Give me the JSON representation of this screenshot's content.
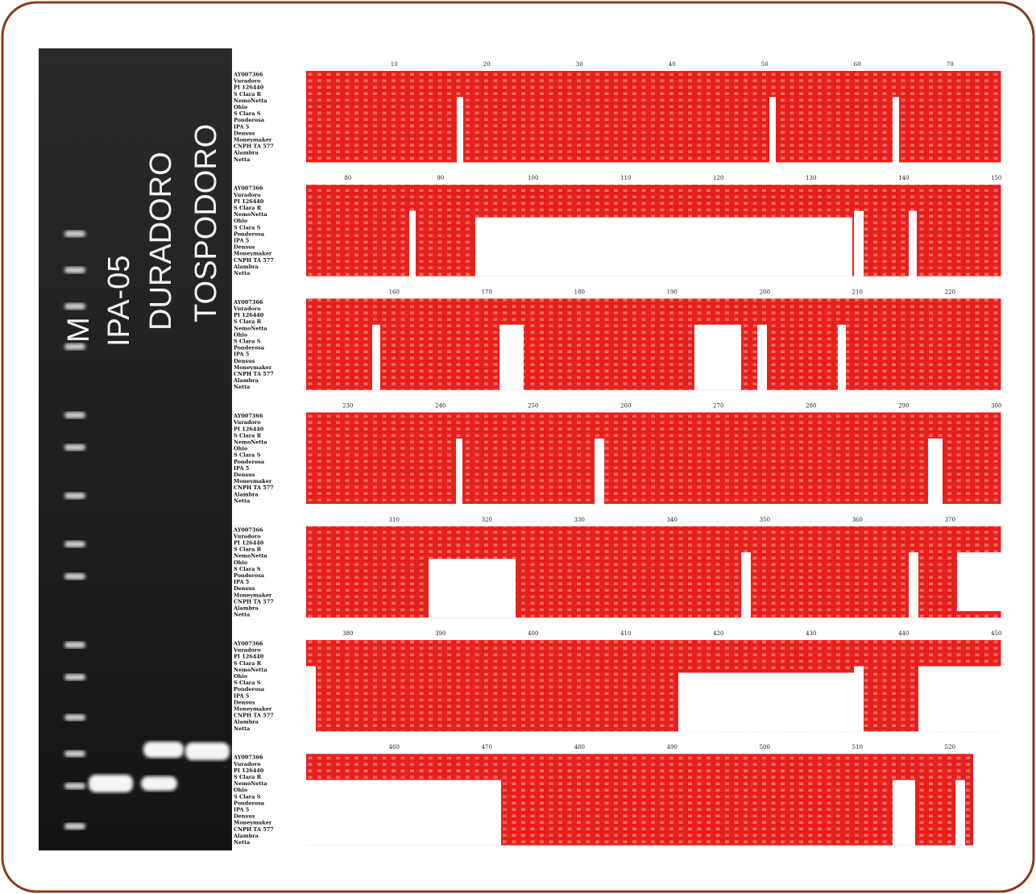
{
  "gel": {
    "lanes": [
      "M",
      "IPA-05",
      "DURADORO",
      "TOSPODORO"
    ]
  },
  "alignment": {
    "samples": [
      "AY007366",
      "Vuradoro",
      "PI 126440",
      "S Clara R",
      "NemoNetta",
      "Ohio",
      "S Clara S",
      "Ponderosa",
      "IPA 5",
      "Densus",
      "Moneymaker",
      "CNPH TA 577",
      "Alambra",
      "Netta"
    ],
    "blocks": [
      {
        "positions": [
          10,
          20,
          30,
          40,
          50,
          60,
          70
        ]
      },
      {
        "positions": [
          80,
          90,
          100,
          110,
          120,
          130,
          140,
          150
        ]
      },
      {
        "positions": [
          160,
          170,
          180,
          190,
          200,
          210,
          220
        ]
      },
      {
        "positions": [
          230,
          240,
          250,
          260,
          270,
          280,
          290,
          300
        ]
      },
      {
        "positions": [
          310,
          320,
          330,
          340,
          350,
          360,
          370
        ]
      },
      {
        "positions": [
          380,
          390,
          400,
          410,
          420,
          430,
          440,
          450
        ]
      },
      {
        "positions": [
          460,
          470,
          480,
          490,
          500,
          510,
          520
        ]
      }
    ]
  }
}
